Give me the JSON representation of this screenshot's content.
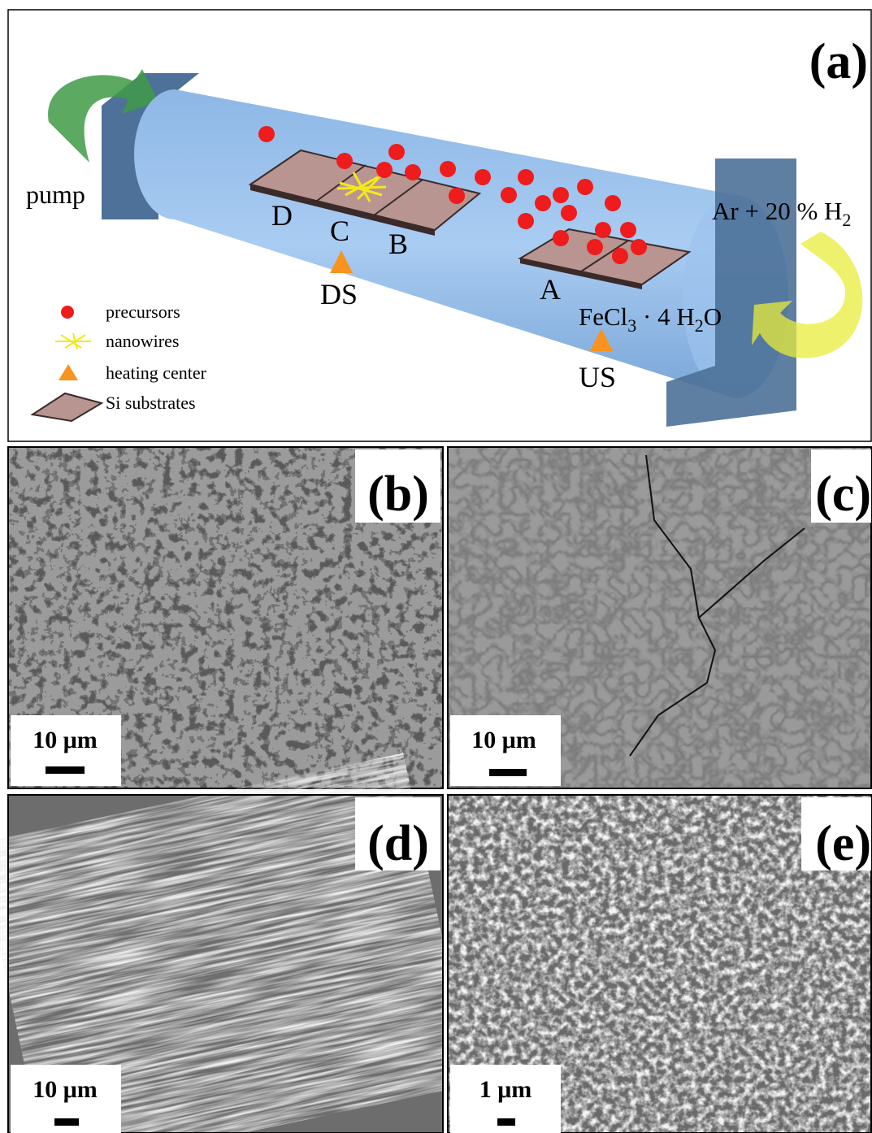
{
  "panel_a": {
    "label": "(a)",
    "pump": "pump",
    "gas": [
      "Ar + 20 % H",
      "2"
    ],
    "substrates": [
      "D",
      "C",
      "B",
      "A"
    ],
    "ds": "DS",
    "us": "US",
    "precursor": [
      "FeCl",
      "3",
      " · 4 H",
      "2",
      "O"
    ],
    "legend": [
      "precursors",
      "nanowires",
      "heating center",
      "Si substrates"
    ]
  },
  "panels": [
    {
      "label": "(b)",
      "scale": "10 μm"
    },
    {
      "label": "(c)",
      "scale": "10 μm"
    },
    {
      "label": "(d)",
      "scale": "10 μm"
    },
    {
      "label": "(e)",
      "scale": "1 μm"
    }
  ]
}
